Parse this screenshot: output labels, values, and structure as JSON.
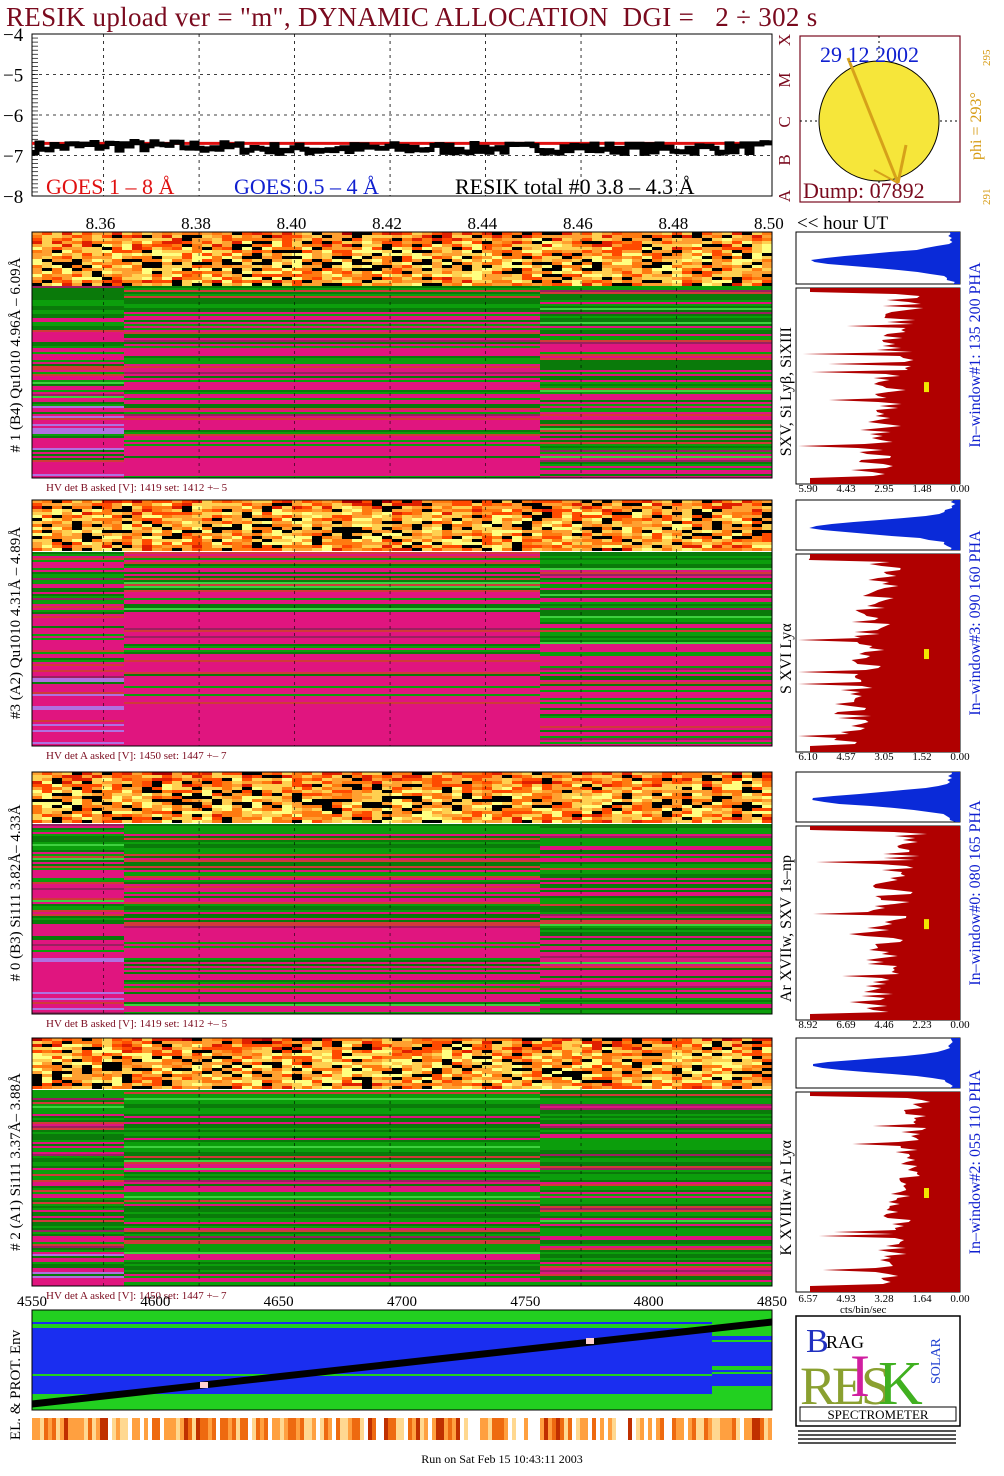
{
  "title": "RESIK upload ver = \"m\", DYNAMIC ALLOCATION  DGI =   2 ÷ 302 s",
  "footer": "Run on Sat Feb 15 10:43:11 2003",
  "colors": {
    "title": "#7a0a1e",
    "goes_long": "#e01010",
    "goes_short": "#1020d0",
    "dark_red": "#b00000",
    "blue_hist": "#0a2ad8",
    "green": "#0c9e0c",
    "magenta": "#e0157f",
    "sun": "#f6e63a",
    "arrow": "#d6a11a"
  },
  "top_plot": {
    "y_ticks": [
      "−4",
      "−5",
      "−6",
      "−7",
      "−8"
    ],
    "y_values": [
      -4,
      -5,
      -6,
      -7,
      -8
    ],
    "legend_goes_long": "GOES 1 – 8 Å",
    "legend_goes_short": "GOES 0.5 – 4 Å",
    "legend_resik": "RESIK total #0  3.8 – 4.3 Å",
    "right_letters": [
      "X",
      "M",
      "C",
      "B",
      "A"
    ],
    "hour_ticks": [
      "8.36",
      "8.38",
      "8.40",
      "8.42",
      "8.44",
      "8.46",
      "8.48",
      "8.50"
    ],
    "hour_label": "<< hour UT"
  },
  "sun_panel": {
    "date": "29 12 2002",
    "dump": "Dump: 07892",
    "phi_label": "phi = 293°",
    "phi_small_top": "295",
    "phi_small_bottom": "291"
  },
  "channels": [
    {
      "left_label": "# 1 (B4) Qu1010 4.96Å – 6.09Å",
      "line_label": "SXV, Si Lyβ, SiXIII",
      "hv_text": "HV det B asked [V]:  1419 set:  1412  +–   5",
      "window_label": "In–window#1:  135 200 PHA",
      "x_ticks": [
        "5.90",
        "4.43",
        "2.95",
        "1.48",
        "0.00"
      ]
    },
    {
      "left_label": "#3 (A2) Qu1010  4.31Å – 4.89Å",
      "line_label": "S XVI Lyα",
      "hv_text": "HV det A asked [V]:  1450 set:  1447  +–   7",
      "window_label": "In–window#3:  090 160 PHA",
      "x_ticks": [
        "6.10",
        "4.57",
        "3.05",
        "1.52",
        "0.00"
      ]
    },
    {
      "left_label": "# 0 (B3) Si111  3.82Å– 4.33Å",
      "line_label": "Ar XVIIw,  SXV 1s–np",
      "hv_text": "HV det B asked [V]:  1419 set:  1412  +–   5",
      "window_label": "In–window#0:  080 165 PHA",
      "x_ticks": [
        "8.92",
        "6.69",
        "4.46",
        "2.23",
        "0.00"
      ]
    },
    {
      "left_label": "# 2 (A1) Si111  3.37Å– 3.88Å",
      "line_label": "K XVIIIw  Ar Lyα",
      "hv_text": "HV det A asked [V]:  1450 set:  1447  +–   7",
      "window_label": "In–window#2:  055 110 PHA",
      "x_ticks": [
        "6.57",
        "4.93",
        "3.28",
        "1.64",
        "0.00"
      ]
    }
  ],
  "cts_label": "cts/bin/sec",
  "bottom": {
    "x_ticks": [
      "4550",
      "4600",
      "4650",
      "4700",
      "4750",
      "4800",
      "4850"
    ],
    "x_values": [
      4550,
      4600,
      4650,
      4700,
      4750,
      4800,
      4850
    ],
    "left_label": "EL. & PROT. Env"
  },
  "logo": {
    "letters_top": "B",
    "letters_rag": "RAG",
    "letters_res": "RES",
    "letters_i": "I",
    "letters_k": "K",
    "letters_solar": "SOLAR",
    "spectrometer": "SPECTROMETER"
  },
  "chart_data": [
    {
      "type": "line",
      "title": "",
      "xlabel": "<< hour UT",
      "ylabel": "",
      "xlim": [
        8.345,
        8.5
      ],
      "ylim": [
        -8,
        -4
      ],
      "series": [
        {
          "name": "GOES 1 – 8 Å",
          "x": [
            8.345,
            8.5
          ],
          "y": [
            -6.7,
            -6.7
          ]
        },
        {
          "name": "RESIK total #0  3.8 – 4.3 Å",
          "x": [
            8.345,
            8.36,
            8.38,
            8.4,
            8.42,
            8.44,
            8.46,
            8.48,
            8.5
          ],
          "y": [
            -6.8,
            -6.75,
            -6.78,
            -6.85,
            -6.82,
            -6.83,
            -6.81,
            -6.84,
            -6.8
          ]
        }
      ]
    },
    {
      "type": "heatmap",
      "xlabel": "",
      "x_ticks": [
        "4550",
        "4600",
        "4650",
        "4700",
        "4750",
        "4800",
        "4850"
      ]
    }
  ]
}
